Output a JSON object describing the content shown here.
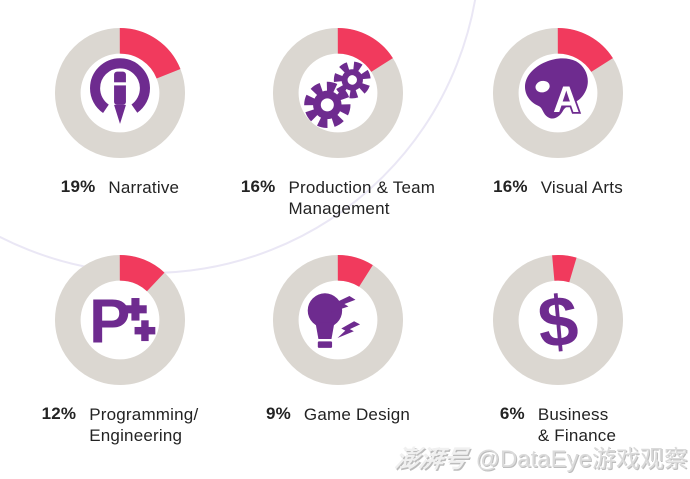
{
  "chart_data": {
    "type": "donut",
    "unit": "%",
    "legend_position": "below-each-donut",
    "colors": {
      "segment": "#F13A5D",
      "ring": "#DBD7D1",
      "icon": "#6E2B8F",
      "text": "#232323",
      "background_curve": "#EAE7F5"
    },
    "items": [
      {
        "value": 19,
        "label": "Narrative",
        "label_lines": [
          "Narrative"
        ],
        "icon": "pen-icon"
      },
      {
        "value": 16,
        "label": "Production & Team Management",
        "label_lines": [
          "Production & Team",
          "Management"
        ],
        "icon": "gears-icon"
      },
      {
        "value": 16,
        "label": "Visual Arts",
        "label_lines": [
          "Visual Arts"
        ],
        "icon": "palette-icon"
      },
      {
        "value": 12,
        "label": "Programming/Engineering",
        "label_lines": [
          "Programming/",
          "Engineering"
        ],
        "icon": "p-plus-plus-icon"
      },
      {
        "value": 9,
        "label": "Game Design",
        "label_lines": [
          "Game Design"
        ],
        "icon": "lightbulb-icon"
      },
      {
        "value": 6,
        "label": "Business & Finance",
        "label_lines": [
          "Business",
          "& Finance"
        ],
        "icon": "dollar-icon",
        "segment_start_offset_deg": -5
      }
    ]
  },
  "watermark": {
    "platform_logo": "澎湃号",
    "handle": "@DataEye游戏观察"
  }
}
